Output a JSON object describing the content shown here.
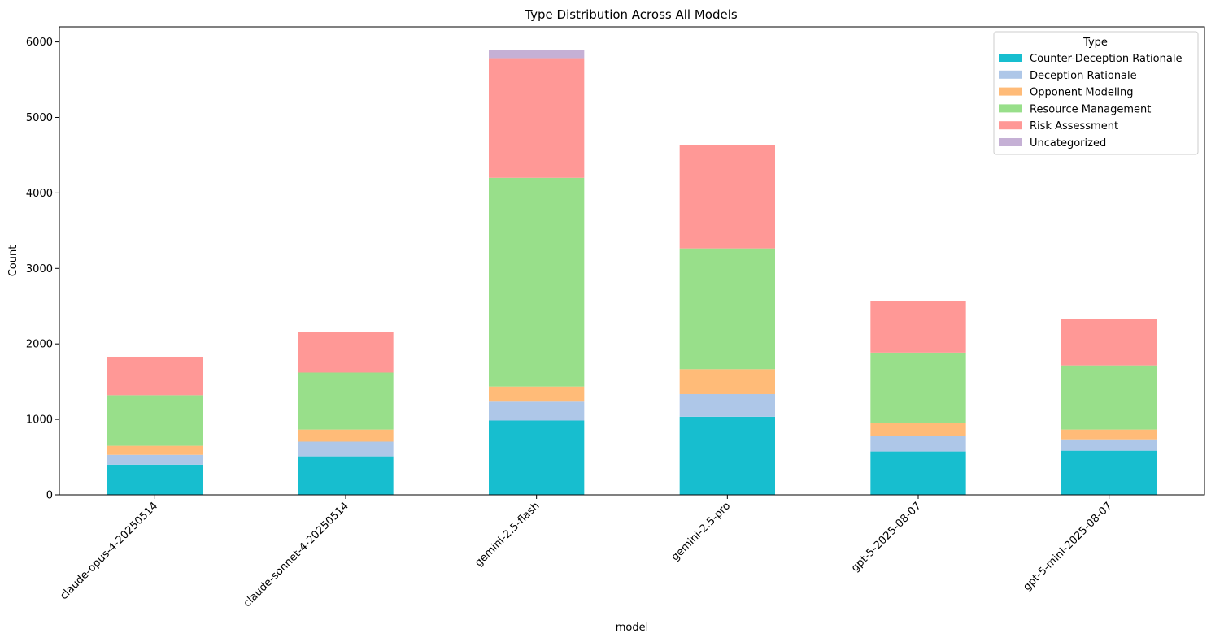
{
  "chart_data": {
    "type": "bar",
    "stacked": true,
    "title": "Type Distribution Across All Models",
    "xlabel": "model",
    "ylabel": "Count",
    "ylim": [
      0,
      6200
    ],
    "yticks": [
      0,
      1000,
      2000,
      3000,
      4000,
      5000,
      6000
    ],
    "categories": [
      "claude-opus-4-20250514",
      "claude-sonnet-4-20250514",
      "gemini-2.5-flash",
      "gemini-2.5-pro",
      "gpt-5-2025-08-07",
      "gpt-5-mini-2025-08-07"
    ],
    "series": [
      {
        "name": "Counter-Deception Rationale",
        "color": "#17becf",
        "values": [
          400,
          510,
          985,
          1035,
          575,
          585
        ]
      },
      {
        "name": "Deception Rationale",
        "color": "#aec7e8",
        "values": [
          130,
          195,
          250,
          300,
          205,
          150
        ]
      },
      {
        "name": "Opponent Modeling",
        "color": "#ffbb78",
        "values": [
          120,
          160,
          200,
          330,
          170,
          130
        ]
      },
      {
        "name": "Resource Management",
        "color": "#98df8a",
        "values": [
          670,
          755,
          2765,
          1600,
          935,
          850
        ]
      },
      {
        "name": "Risk Assessment",
        "color": "#ff9896",
        "values": [
          510,
          540,
          1585,
          1365,
          685,
          610
        ]
      },
      {
        "name": "Uncategorized",
        "color": "#c5b0d5",
        "values": [
          0,
          0,
          110,
          0,
          0,
          0
        ]
      }
    ],
    "legend": {
      "title": "Type",
      "position": "top-right"
    },
    "grid": false
  }
}
